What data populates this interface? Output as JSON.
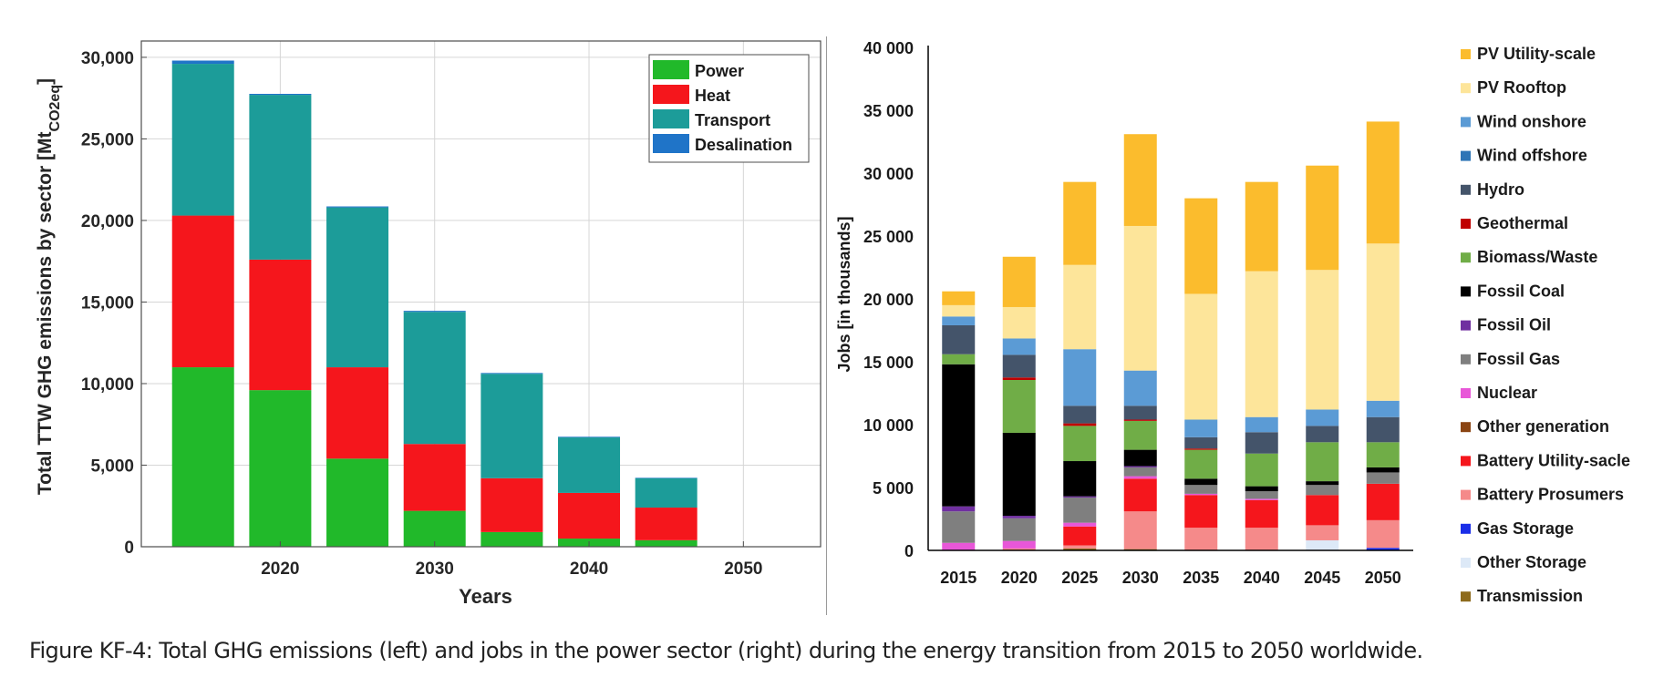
{
  "caption": "Figure KF-4: Total GHG emissions (left) and jobs in the power sector (right) during the energy transition from 2015 to 2050 worldwide.",
  "chart_data": [
    {
      "type": "bar",
      "stacked": true,
      "title": "",
      "xlabel": "Years",
      "ylabel": "Total TTW GHG emissions by sector [Mt",
      "ylabel_sub": "CO2eq",
      "ylabel_end": "]",
      "x": [
        2015,
        2020,
        2025,
        2030,
        2035,
        2040,
        2045,
        2050
      ],
      "xlim": [
        2011,
        2055
      ],
      "ylim": [
        0,
        31000
      ],
      "yticks": [
        0,
        5000,
        10000,
        15000,
        20000,
        25000,
        30000
      ],
      "ytick_labels": [
        "0",
        "5,000",
        "10,000",
        "15,000",
        "20,000",
        "25,000",
        "30,000"
      ],
      "xticks": [
        2020,
        2030,
        2040,
        2050
      ],
      "xtick_labels": [
        "2020",
        "2030",
        "2040",
        "2050"
      ],
      "grid": true,
      "legend_position": "top-right",
      "series": [
        {
          "name": "Power",
          "color": "#21b92a",
          "values": [
            11000,
            9600,
            5400,
            2200,
            900,
            500,
            400,
            0
          ]
        },
        {
          "name": "Heat",
          "color": "#f5161c",
          "values": [
            9300,
            8000,
            5600,
            4100,
            3300,
            2800,
            2000,
            0
          ]
        },
        {
          "name": "Transport",
          "color": "#1c9c99",
          "values": [
            9300,
            10100,
            9800,
            8100,
            6400,
            3400,
            1800,
            0
          ]
        },
        {
          "name": "Desalination",
          "color": "#1f74c8",
          "values": [
            200,
            60,
            60,
            60,
            50,
            40,
            30,
            0
          ]
        }
      ]
    },
    {
      "type": "bar",
      "stacked": true,
      "title": "",
      "xlabel": "",
      "ylabel": "Jobs [in thousands]",
      "categories": [
        "2015",
        "2020",
        "2025",
        "2030",
        "2035",
        "2040",
        "2045",
        "2050"
      ],
      "ylim": [
        0,
        40000
      ],
      "yticks": [
        0,
        5000,
        10000,
        15000,
        20000,
        25000,
        30000,
        35000,
        40000
      ],
      "ytick_labels": [
        "0",
        "5 000",
        "10 000",
        "15 000",
        "20 000",
        "25 000",
        "30 000",
        "35 000",
        "40 000"
      ],
      "grid": false,
      "legend_position": "right",
      "series": [
        {
          "name": "Transmission",
          "color": "#8d6a1c",
          "values": [
            0,
            0,
            150,
            100,
            0,
            0,
            0,
            0
          ]
        },
        {
          "name": "Other Storage",
          "color": "#dde9f7",
          "values": [
            0,
            0,
            0,
            0,
            0,
            0,
            800,
            0
          ]
        },
        {
          "name": "Gas Storage",
          "color": "#1a2ee8",
          "values": [
            0,
            0,
            0,
            0,
            0,
            0,
            0,
            200
          ]
        },
        {
          "name": "Battery Prosumers",
          "color": "#f58a8a",
          "values": [
            0,
            150,
            250,
            3000,
            1800,
            1800,
            1200,
            2200
          ]
        },
        {
          "name": "Battery Utility-sacle",
          "color": "#f5161c",
          "values": [
            0,
            0,
            1500,
            2600,
            2600,
            2200,
            2400,
            2900
          ]
        },
        {
          "name": "Other generation",
          "color": "#8b4513",
          "values": [
            0,
            0,
            0,
            0,
            0,
            0,
            0,
            0
          ]
        },
        {
          "name": "Nuclear",
          "color": "#e857d8",
          "values": [
            600,
            600,
            300,
            200,
            100,
            100,
            0,
            0
          ]
        },
        {
          "name": "Fossil Gas",
          "color": "#7f7f7f",
          "values": [
            2500,
            1800,
            2000,
            700,
            700,
            600,
            800,
            900
          ]
        },
        {
          "name": "Fossil Oil",
          "color": "#7030a0",
          "values": [
            400,
            200,
            100,
            100,
            0,
            0,
            0,
            0
          ]
        },
        {
          "name": "Fossil Coal",
          "color": "#000000",
          "values": [
            11300,
            6600,
            2800,
            1300,
            500,
            400,
            300,
            400
          ]
        },
        {
          "name": "Biomass/Waste",
          "color": "#70ad47",
          "values": [
            800,
            4200,
            2800,
            2300,
            2300,
            2600,
            3100,
            2000
          ]
        },
        {
          "name": "Geothermal",
          "color": "#c00000",
          "values": [
            0,
            200,
            200,
            100,
            100,
            0,
            0,
            0
          ]
        },
        {
          "name": "Hydro",
          "color": "#44546a",
          "values": [
            2300,
            1800,
            1400,
            1100,
            900,
            1700,
            1300,
            2000
          ]
        },
        {
          "name": "Wind offshore",
          "color": "#2e75b6",
          "values": [
            0,
            0,
            0,
            0,
            0,
            0,
            0,
            0
          ]
        },
        {
          "name": "Wind onshore",
          "color": "#5b9bd5",
          "values": [
            700,
            1300,
            4500,
            2800,
            1400,
            1200,
            1300,
            1300
          ]
        },
        {
          "name": "PV Rooftop",
          "color": "#fde59a",
          "values": [
            900,
            2500,
            6700,
            11500,
            10000,
            11600,
            11100,
            12500
          ]
        },
        {
          "name": "PV Utility-scale",
          "color": "#fbbc2d",
          "values": [
            1100,
            4000,
            6600,
            7300,
            7600,
            7100,
            8300,
            9700
          ]
        }
      ],
      "legend_order": [
        "PV Utility-scale",
        "PV Rooftop",
        "Wind onshore",
        "Wind offshore",
        "Hydro",
        "Geothermal",
        "Biomass/Waste",
        "Fossil Coal",
        "Fossil Oil",
        "Fossil Gas",
        "Nuclear",
        "Other generation",
        "Battery Utility-sacle",
        "Battery Prosumers",
        "Gas Storage",
        "Other Storage",
        "Transmission"
      ]
    }
  ]
}
